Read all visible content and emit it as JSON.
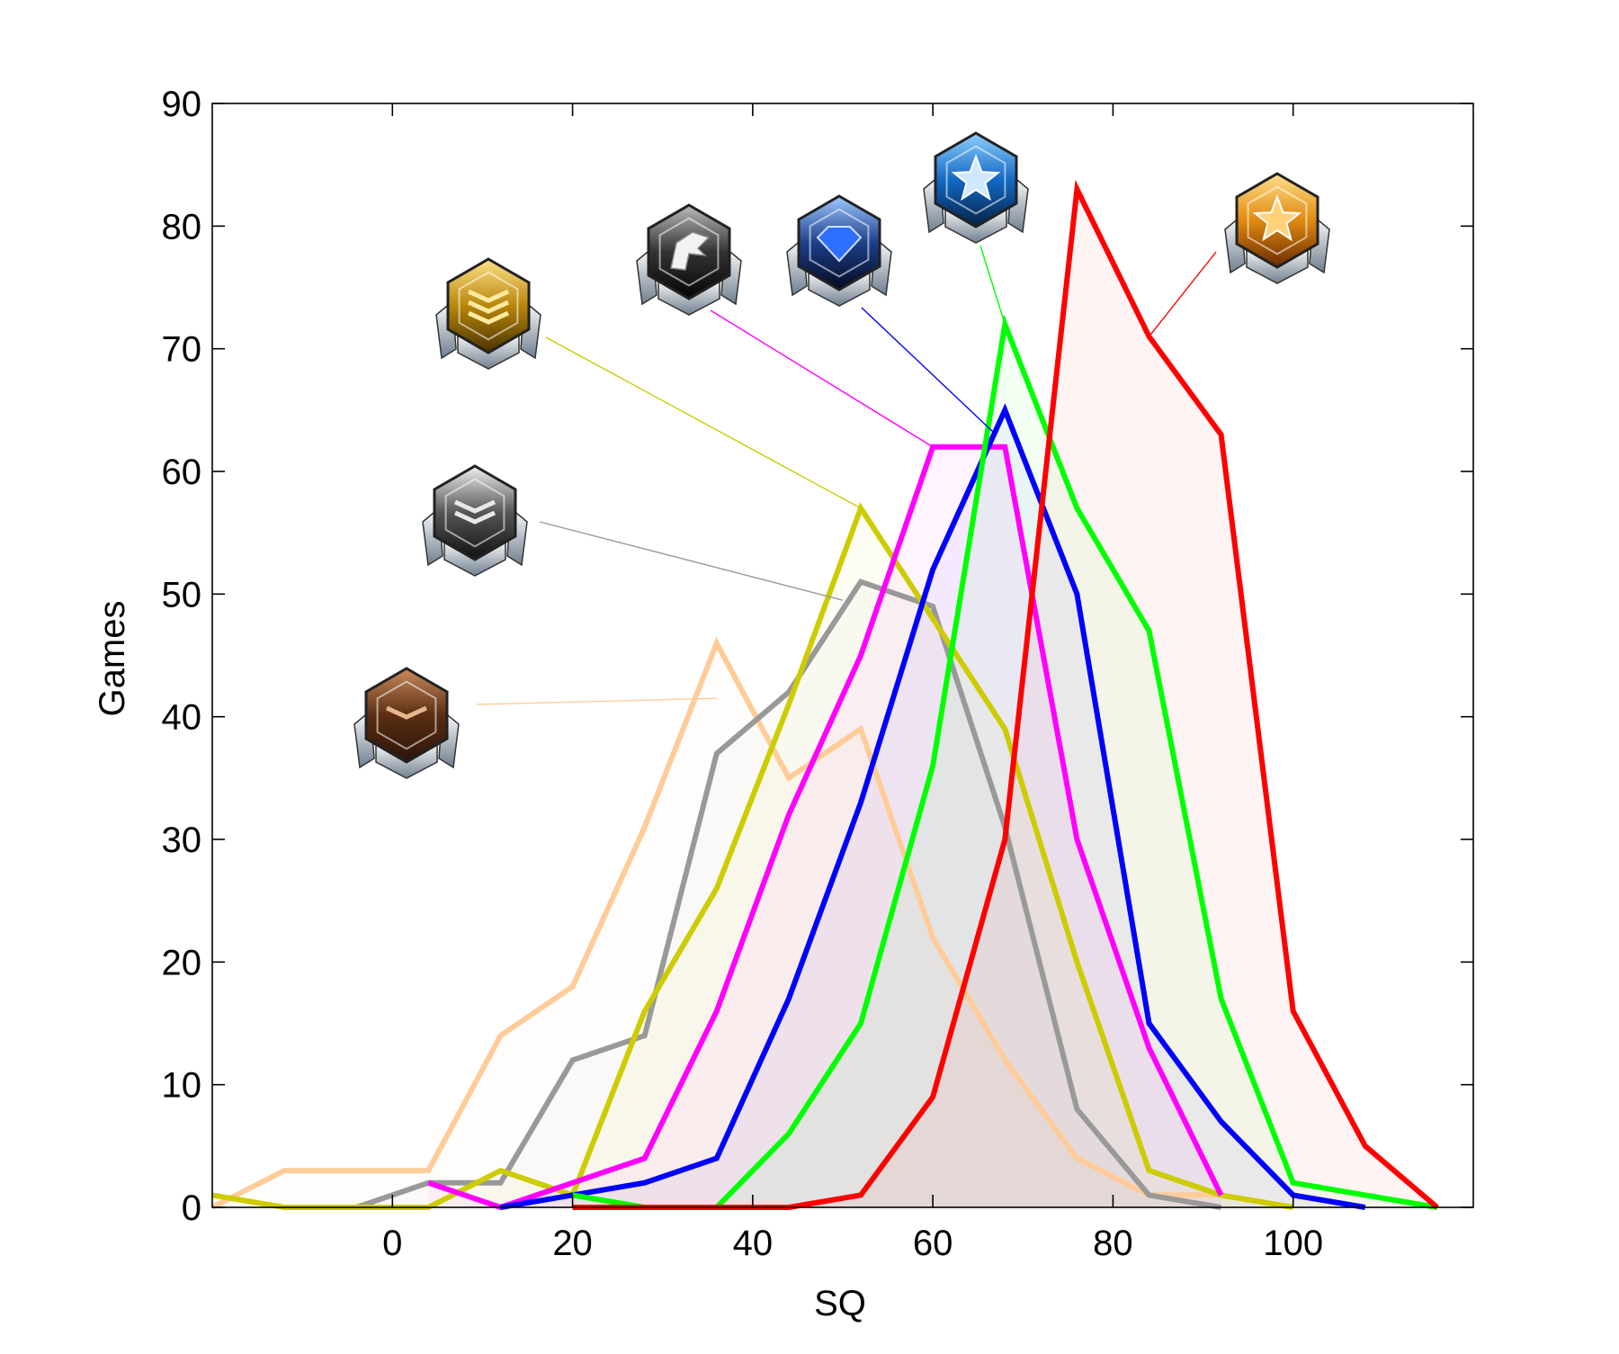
{
  "chart_data": {
    "type": "line",
    "title": "",
    "xlabel": "SQ",
    "ylabel": "Games",
    "xlim": [
      -20,
      120
    ],
    "ylim": [
      0,
      90
    ],
    "xticks": [
      0,
      20,
      40,
      60,
      80,
      100
    ],
    "yticks": [
      0,
      10,
      20,
      30,
      40,
      50,
      60,
      70,
      80,
      90
    ],
    "grid": false,
    "box": true,
    "series": [
      {
        "color": "#ffcc99",
        "icon": "bronze-league-icon",
        "callout_target": [
          36,
          41.5
        ],
        "x": [
          -20,
          -12,
          4,
          12,
          20,
          28,
          36,
          44,
          52,
          60,
          68,
          76,
          84,
          92,
          100
        ],
        "y": [
          0,
          3,
          3,
          14,
          18,
          31,
          46,
          35,
          39,
          22,
          12,
          4,
          1,
          1,
          0
        ]
      },
      {
        "color": "#999999",
        "icon": "silver-league-icon",
        "callout_target": [
          50,
          49.5
        ],
        "x": [
          -4,
          4,
          12,
          20,
          28,
          36,
          44,
          52,
          60,
          68,
          76,
          84,
          92
        ],
        "y": [
          0,
          2,
          2,
          12,
          14,
          37,
          42,
          51,
          49,
          31,
          8,
          1,
          0
        ]
      },
      {
        "color": "#cccc00",
        "icon": "gold-league-icon",
        "callout_target": [
          52,
          57
        ],
        "x": [
          -20,
          -12,
          4,
          12,
          20,
          28,
          36,
          44,
          52,
          60,
          68,
          76,
          84,
          92,
          100
        ],
        "y": [
          1,
          0,
          0,
          3,
          1,
          16,
          26,
          41,
          57,
          48,
          39,
          20,
          3,
          1,
          0
        ]
      },
      {
        "color": "#ff00ff",
        "icon": "platinum-league-icon",
        "callout_target": [
          60,
          62
        ],
        "x": [
          4,
          12,
          20,
          28,
          36,
          44,
          52,
          60,
          68,
          76,
          84,
          92
        ],
        "y": [
          2,
          0,
          2,
          4,
          16,
          32,
          45,
          62,
          62,
          30,
          13,
          1
        ]
      },
      {
        "color": "#0000ff",
        "icon": "diamond-league-icon",
        "callout_target": [
          67,
          63
        ],
        "x": [
          12,
          20,
          28,
          36,
          44,
          52,
          60,
          68,
          76,
          84,
          92,
          100,
          108
        ],
        "y": [
          0,
          1,
          2,
          4,
          17,
          33,
          52,
          65,
          50,
          15,
          7,
          1,
          0
        ]
      },
      {
        "color": "#00ff00",
        "icon": "master-league-icon",
        "callout_target": [
          68,
          72
        ],
        "x": [
          20,
          28,
          36,
          44,
          52,
          60,
          68,
          76,
          84,
          92,
          100,
          108,
          116
        ],
        "y": [
          1,
          0,
          0,
          6,
          15,
          36,
          72,
          57,
          47,
          17,
          2,
          1,
          0
        ]
      },
      {
        "color": "#ff0000",
        "icon": "grandmaster-league-icon",
        "callout_target": [
          84,
          71
        ],
        "x": [
          20,
          44,
          52,
          60,
          68,
          76,
          84,
          92,
          100,
          108,
          116
        ],
        "y": [
          0,
          0,
          1,
          9,
          30,
          83,
          71,
          63,
          16,
          5,
          0
        ]
      }
    ]
  }
}
